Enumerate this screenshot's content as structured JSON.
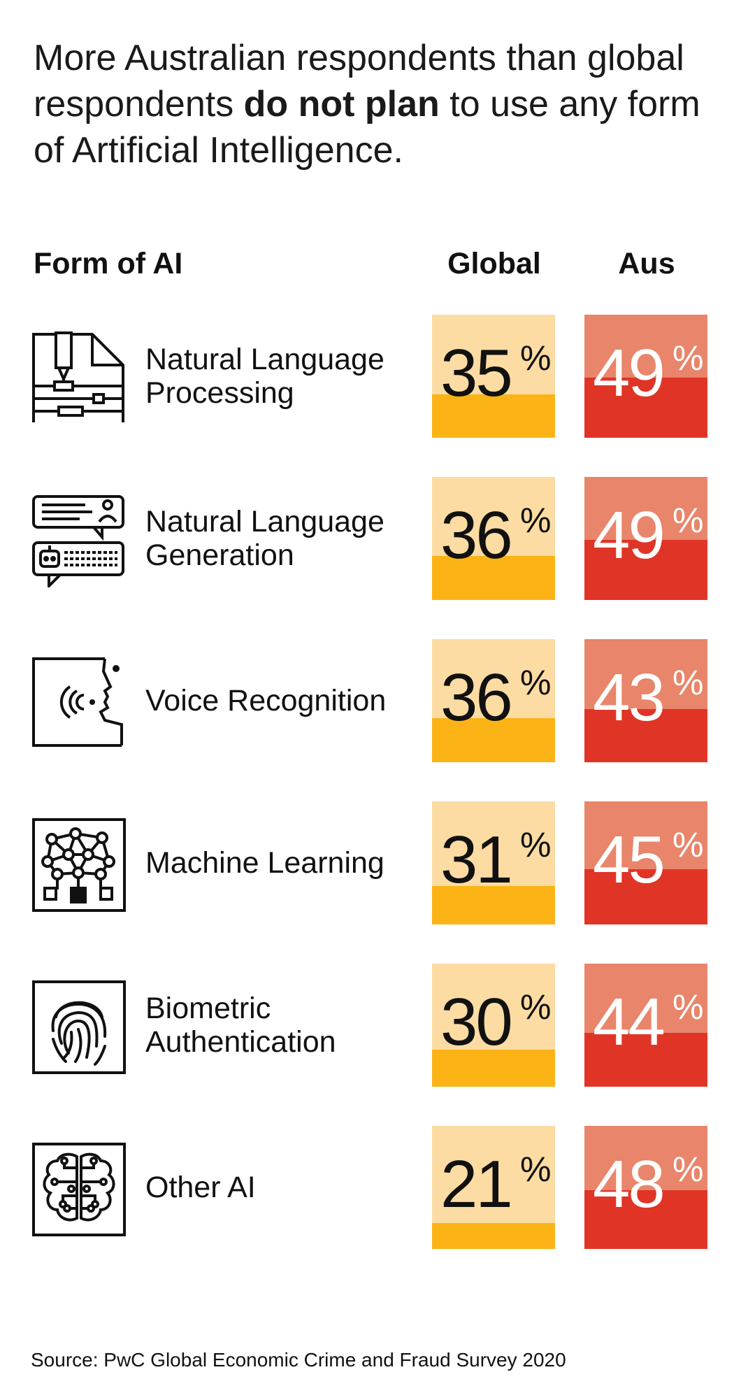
{
  "title": {
    "part1": "More Australian respondents than global respondents ",
    "emphasis": "do not plan",
    "part2": " to use any form of Artificial Intelligence."
  },
  "headers": {
    "form": "Form of AI",
    "global": "Global",
    "aus": "Aus"
  },
  "colors": {
    "global_light": "#fcdca3",
    "global_dark": "#fbb316",
    "aus_light": "#e8856a",
    "aus_dark": "#e03426"
  },
  "chart_data": {
    "type": "table",
    "title": "More Australian respondents than global respondents do not plan to use any form of Artificial Intelligence.",
    "columns": [
      "Form of AI",
      "Global",
      "Aus"
    ],
    "unit": "%",
    "rows": [
      {
        "form": "Natural Language Processing",
        "icon": "document-pen-icon",
        "global": 35,
        "aus": 49
      },
      {
        "form": "Natural Language Generation",
        "icon": "chat-bot-icon",
        "global": 36,
        "aus": 49
      },
      {
        "form": "Voice Recognition",
        "icon": "voice-face-icon",
        "global": 36,
        "aus": 43
      },
      {
        "form": "Machine Learning",
        "icon": "neural-network-icon",
        "global": 31,
        "aus": 45
      },
      {
        "form": "Biometric Authentication",
        "icon": "fingerprint-icon",
        "global": 30,
        "aus": 44
      },
      {
        "form": "Other AI",
        "icon": "brain-circuit-icon",
        "global": 21,
        "aus": 48
      }
    ],
    "labels": [
      [
        "Natural Language",
        "Processing"
      ],
      [
        "Natural Language",
        "Generation"
      ],
      [
        "Voice Recognition"
      ],
      [
        "Machine Learning"
      ],
      [
        "Biometric",
        "Authentication"
      ],
      [
        "Other AI"
      ]
    ]
  },
  "source": "Source: PwC Global Economic Crime and Fraud Survey 2020"
}
